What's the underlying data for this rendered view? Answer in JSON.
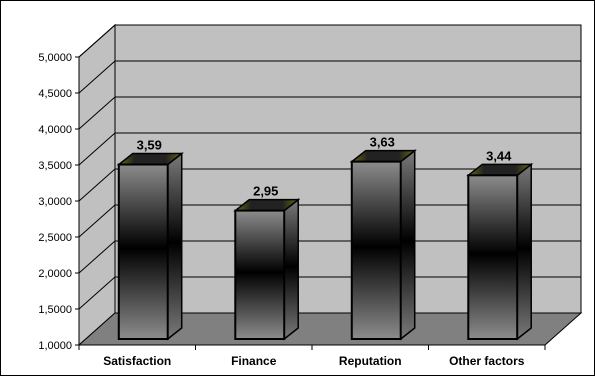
{
  "chart_data": {
    "type": "bar",
    "style": "3d-column",
    "categories": [
      "Satisfaction",
      "Finance",
      "Reputation",
      "Other factors"
    ],
    "values": [
      3.59,
      2.95,
      3.63,
      3.44
    ],
    "value_labels": [
      "3,59",
      "2,95",
      "3,63",
      "3,44"
    ],
    "ylim": [
      1,
      5
    ],
    "yticks": [
      "1,0000",
      "1,5000",
      "2,0000",
      "2,5000",
      "3,0000",
      "3,5000",
      "4,0000",
      "4,5000",
      "5,0000"
    ],
    "grid": true,
    "legend": "none",
    "title": "",
    "xlabel": "",
    "ylabel": ""
  },
  "colors": {
    "wall": "#c0c0c0",
    "floor": "#808080",
    "bar_dark": "#000000",
    "bar_light": "#8a8a8a",
    "bar_top_accent": "#6b6b10"
  }
}
